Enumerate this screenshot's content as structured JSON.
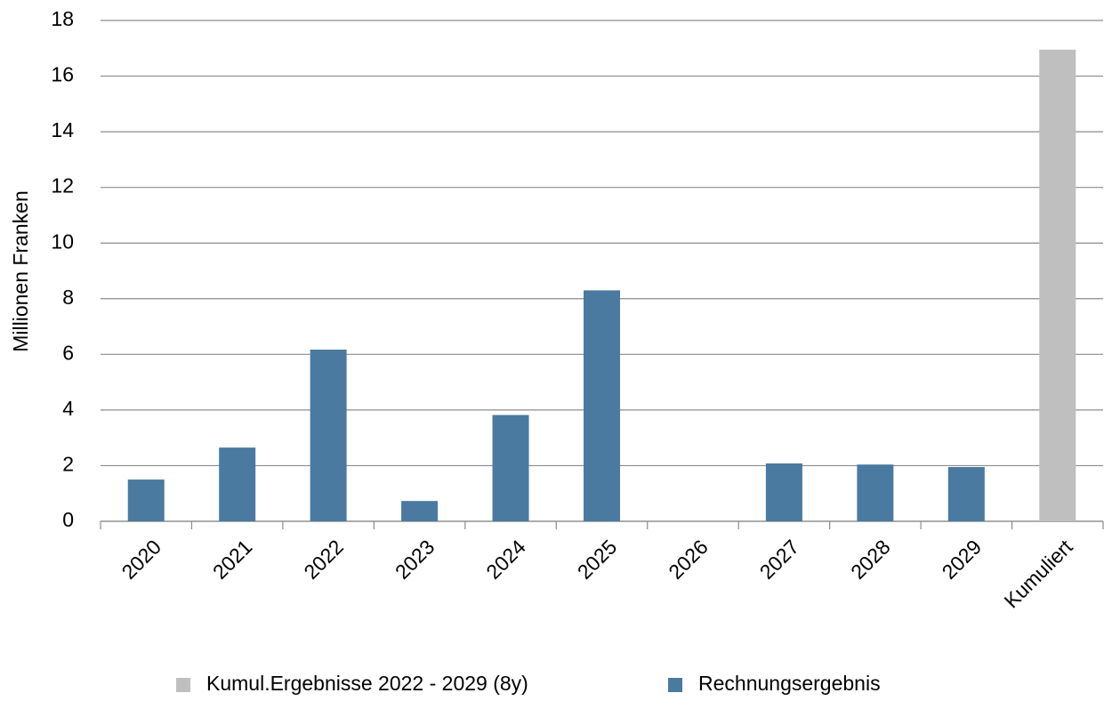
{
  "chart_data": {
    "type": "bar",
    "y_label": "Millionen Franken",
    "categories": [
      "2020",
      "2021",
      "2022",
      "2023",
      "2024",
      "2025",
      "2026",
      "2027",
      "2028",
      "2029",
      "Kumuliert"
    ],
    "series": [
      {
        "name": "Kumul.Ergebnisse 2022 - 2029 (8y)",
        "color": "#bfbfbf",
        "values": [
          null,
          null,
          null,
          null,
          null,
          null,
          null,
          null,
          null,
          null,
          16.95
        ]
      },
      {
        "name": "Rechnungsergebnis",
        "color": "#4a7aa0",
        "values": [
          1.5,
          2.65,
          6.17,
          0.73,
          3.82,
          8.3,
          null,
          2.08,
          2.04,
          1.95,
          null
        ]
      }
    ],
    "ylim": [
      0,
      18
    ],
    "yticks": [
      0,
      2,
      4,
      6,
      8,
      10,
      12,
      14,
      16,
      18
    ],
    "grid": true,
    "legend": "bottom"
  }
}
